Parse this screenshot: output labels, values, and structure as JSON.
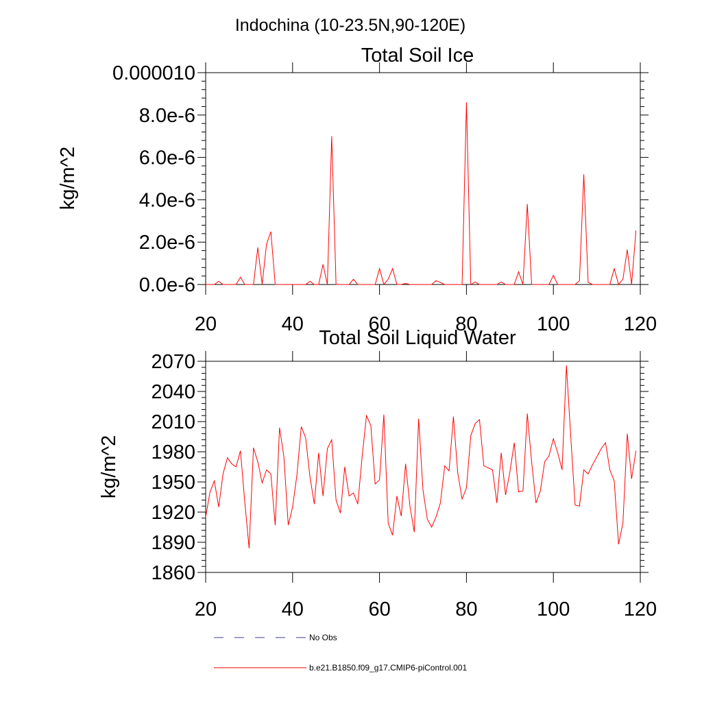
{
  "header": {
    "region_title": "Indochina (10-23.5N,90-120E)"
  },
  "colors": {
    "model_line": "#ff0000",
    "obs_line": "#3b3b8f",
    "axis": "#000000"
  },
  "chart_data": [
    {
      "type": "line",
      "title": "Total Soil Ice",
      "xlabel": "",
      "ylabel": "kg/m^2",
      "xlim": [
        20,
        120
      ],
      "ylim": [
        0,
        1e-05
      ],
      "x_ticks": [
        20,
        40,
        60,
        80,
        100,
        120
      ],
      "x_tick_labels": [
        "20",
        "40",
        "60",
        "80",
        "100",
        "120"
      ],
      "y_ticks": [
        0,
        2e-06,
        4e-06,
        6e-06,
        8e-06,
        1e-05
      ],
      "y_tick_labels": [
        "0.0e-6",
        "2.0e-6",
        "4.0e-6",
        "6.0e-6",
        "8.0e-6",
        "0.000010"
      ],
      "grid": false,
      "series": [
        {
          "name": "b.e21.B1850.f09_g17.CMIP6-piControl.001",
          "x": [
            20,
            21,
            22,
            23,
            24,
            25,
            26,
            27,
            28,
            29,
            30,
            31,
            32,
            33,
            34,
            35,
            36,
            37,
            38,
            39,
            40,
            41,
            42,
            43,
            44,
            45,
            46,
            47,
            48,
            49,
            50,
            51,
            52,
            53,
            54,
            55,
            56,
            57,
            58,
            59,
            60,
            61,
            62,
            63,
            64,
            65,
            66,
            67,
            68,
            69,
            70,
            71,
            72,
            73,
            74,
            75,
            76,
            77,
            78,
            79,
            80,
            81,
            82,
            83,
            84,
            85,
            86,
            87,
            88,
            89,
            90,
            91,
            92,
            93,
            94,
            95,
            96,
            97,
            98,
            99,
            100,
            101,
            102,
            103,
            104,
            105,
            106,
            107,
            108,
            109,
            110,
            111,
            112,
            113,
            114,
            115,
            116,
            117,
            118,
            119
          ],
          "values": [
            0.0,
            0.0,
            0.0,
            1.5e-07,
            0.0,
            0.0,
            0.0,
            0.0,
            3.5e-07,
            0.0,
            0.0,
            0.0,
            1.75e-06,
            0.0,
            1.9e-06,
            2.5e-06,
            0.0,
            0.0,
            0.0,
            0.0,
            0.0,
            0.0,
            0.0,
            0.0,
            1.5e-07,
            0.0,
            0.0,
            9.5e-07,
            0.0,
            7e-06,
            0.0,
            0.0,
            0.0,
            0.0,
            2.5e-07,
            0.0,
            0.0,
            0.0,
            0.0,
            0.0,
            7.5e-07,
            0.0,
            2.5e-07,
            7.5e-07,
            0.0,
            0.0,
            5e-08,
            0.0,
            0.0,
            0.0,
            0.0,
            0.0,
            0.0,
            1.8e-07,
            1e-07,
            0.0,
            0.0,
            0.0,
            0.0,
            0.0,
            8.6e-06,
            0.0,
            1.2e-07,
            0.0,
            0.0,
            0.0,
            0.0,
            0.0,
            1.2e-07,
            0.0,
            0.0,
            0.0,
            6e-07,
            0.0,
            3.8e-06,
            0.0,
            0.0,
            0.0,
            0.0,
            0.0,
            4.3e-07,
            0.0,
            0.0,
            0.0,
            0.0,
            0.0,
            1.8e-07,
            5.2e-06,
            1e-07,
            0.0,
            0.0,
            0.0,
            0.0,
            0.0,
            7.5e-07,
            0.0,
            2.5e-07,
            1.65e-06,
            0.0,
            2.55e-06
          ]
        }
      ]
    },
    {
      "type": "line",
      "title": "Total Soil Liquid Water",
      "xlabel": "",
      "ylabel": "kg/m^2",
      "xlim": [
        20,
        120
      ],
      "ylim": [
        1860,
        2070
      ],
      "x_ticks": [
        20,
        40,
        60,
        80,
        100,
        120
      ],
      "x_tick_labels": [
        "20",
        "40",
        "60",
        "80",
        "100",
        "120"
      ],
      "y_ticks": [
        1860,
        1890,
        1920,
        1950,
        1980,
        2010,
        2040,
        2070
      ],
      "y_tick_labels": [
        "1860",
        "1890",
        "1920",
        "1950",
        "1980",
        "2010",
        "2040",
        "2070"
      ],
      "grid": false,
      "series": [
        {
          "name": "b.e21.B1850.f09_g17.CMIP6-piControl.001",
          "x": [
            20,
            21,
            22,
            23,
            24,
            25,
            26,
            27,
            28,
            29,
            30,
            31,
            32,
            33,
            34,
            35,
            36,
            37,
            38,
            39,
            40,
            41,
            42,
            43,
            44,
            45,
            46,
            47,
            48,
            49,
            50,
            51,
            52,
            53,
            54,
            55,
            56,
            57,
            58,
            59,
            60,
            61,
            62,
            63,
            64,
            65,
            66,
            67,
            68,
            69,
            70,
            71,
            72,
            73,
            74,
            75,
            76,
            77,
            78,
            79,
            80,
            81,
            82,
            83,
            84,
            85,
            86,
            87,
            88,
            89,
            90,
            91,
            92,
            93,
            94,
            95,
            96,
            97,
            98,
            99,
            100,
            101,
            102,
            103,
            104,
            105,
            106,
            107,
            108,
            109,
            110,
            111,
            112,
            113,
            114,
            115,
            116,
            117,
            118,
            119
          ],
          "values": [
            1915,
            1940,
            1951,
            1925,
            1958,
            1974,
            1968,
            1965,
            1981,
            1930,
            1884,
            1984,
            1970,
            1949,
            1962,
            1958,
            1907,
            2004,
            1975,
            1907,
            1925,
            1957,
            2005,
            1994,
            1955,
            1928,
            1979,
            1936,
            1983,
            1992,
            1932,
            1919,
            1965,
            1936,
            1939,
            1928,
            1975,
            2016,
            2006,
            1948,
            1952,
            2017,
            1909,
            1897,
            1936,
            1916,
            1968,
            1926,
            1900,
            2013,
            1942,
            1913,
            1905,
            1915,
            1929,
            1966,
            1961,
            2015,
            1959,
            1933,
            1944,
            1996,
            2008,
            2012,
            1966,
            1964,
            1962,
            1929,
            1979,
            1937,
            1960,
            1989,
            1940,
            1941,
            2018,
            1970,
            1929,
            1941,
            1970,
            1976,
            1993,
            1979,
            1962,
            2066,
            1995,
            1927,
            1926,
            1962,
            1958,
            1967,
            1975,
            1983,
            1989,
            1962,
            1951,
            1888,
            1909,
            1998,
            1953,
            1981
          ]
        }
      ]
    }
  ],
  "legend": {
    "placement": "bottom-left",
    "items": [
      {
        "label": "No Obs",
        "style": "dashed"
      },
      {
        "label": "b.e21.B1850.f09_g17.CMIP6-piControl.001",
        "style": "solid"
      }
    ]
  }
}
